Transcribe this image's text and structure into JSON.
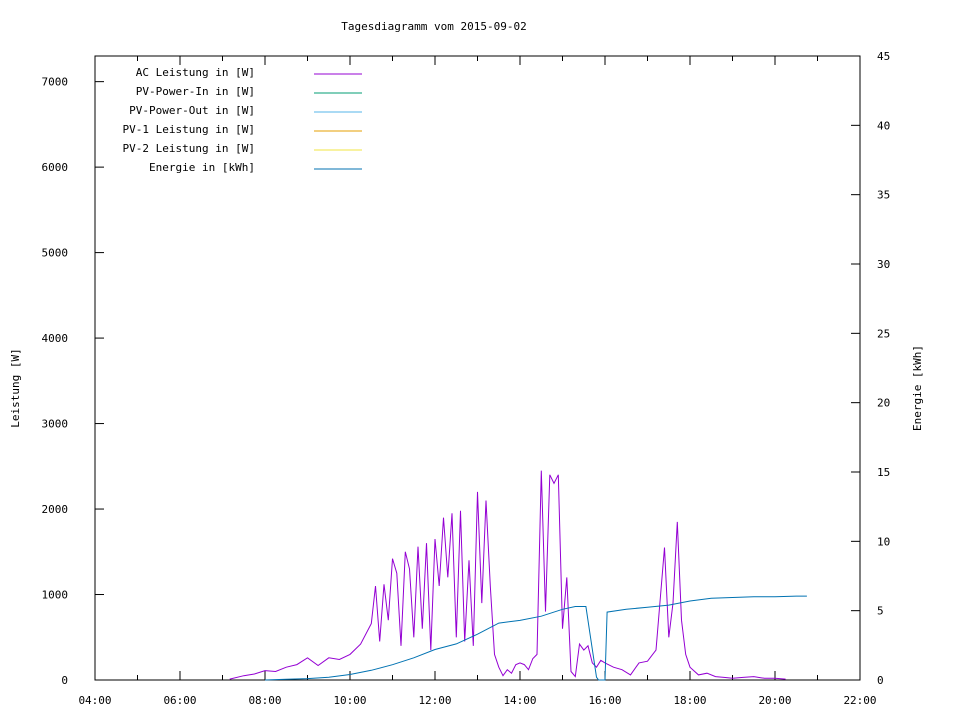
{
  "chart_data": {
    "type": "line",
    "title": "Tagesdiagramm vom 2015-09-02",
    "ylabel": "Leistung [W]",
    "y2label": "Energie [kWh]",
    "x_unit": "hours of day",
    "xlim": [
      4,
      22
    ],
    "ylim": [
      0,
      7300
    ],
    "y2lim": [
      0,
      45
    ],
    "x_ticks": [
      4,
      6,
      8,
      10,
      12,
      14,
      16,
      18,
      20,
      22
    ],
    "x_tick_labels": [
      "04:00",
      "06:00",
      "08:00",
      "10:00",
      "12:00",
      "14:00",
      "16:00",
      "18:00",
      "20:00",
      "22:00"
    ],
    "y_ticks": [
      0,
      1000,
      2000,
      3000,
      4000,
      5000,
      6000,
      7000
    ],
    "y_tick_labels": [
      "0",
      "1000",
      "2000",
      "3000",
      "4000",
      "5000",
      "6000",
      "7000"
    ],
    "y2_ticks": [
      0,
      5,
      10,
      15,
      20,
      25,
      30,
      35,
      40,
      45
    ],
    "y2_tick_labels": [
      "0",
      "5",
      "10",
      "15",
      "20",
      "25",
      "30",
      "35",
      "40",
      "45"
    ],
    "grid": false,
    "legend_position": "top-left",
    "series": [
      {
        "name": "AC Leistung in [W]",
        "axis": "left",
        "color": "#9400d3",
        "x": [
          7.17,
          7.5,
          7.75,
          8.0,
          8.25,
          8.5,
          8.75,
          9.0,
          9.25,
          9.5,
          9.75,
          10.0,
          10.25,
          10.5,
          10.6,
          10.7,
          10.8,
          10.9,
          11.0,
          11.1,
          11.2,
          11.3,
          11.4,
          11.5,
          11.6,
          11.7,
          11.8,
          11.9,
          12.0,
          12.1,
          12.2,
          12.3,
          12.4,
          12.5,
          12.6,
          12.7,
          12.8,
          12.9,
          13.0,
          13.1,
          13.2,
          13.3,
          13.4,
          13.5,
          13.6,
          13.7,
          13.8,
          13.9,
          14.0,
          14.1,
          14.2,
          14.3,
          14.4,
          14.5,
          14.6,
          14.7,
          14.8,
          14.9,
          15.0,
          15.1,
          15.2,
          15.3,
          15.4,
          15.5,
          15.6,
          15.7,
          15.8,
          15.9,
          16.0,
          16.2,
          16.4,
          16.6,
          16.8,
          17.0,
          17.2,
          17.4,
          17.5,
          17.6,
          17.7,
          17.8,
          17.9,
          18.0,
          18.2,
          18.4,
          18.6,
          18.8,
          19.0,
          19.25,
          19.5,
          19.75,
          20.0,
          20.25
        ],
        "y": [
          10,
          50,
          70,
          110,
          100,
          150,
          180,
          260,
          170,
          260,
          240,
          300,
          420,
          660,
          1100,
          450,
          1120,
          700,
          1420,
          1250,
          400,
          1500,
          1300,
          500,
          1560,
          600,
          1600,
          350,
          1650,
          1100,
          1900,
          1200,
          1950,
          500,
          1980,
          450,
          1400,
          400,
          2200,
          900,
          2100,
          1100,
          300,
          150,
          50,
          120,
          80,
          180,
          200,
          180,
          120,
          250,
          300,
          2450,
          800,
          2400,
          2300,
          2400,
          600,
          1200,
          100,
          40,
          420,
          350,
          400,
          200,
          150,
          230,
          200,
          150,
          120,
          60,
          200,
          220,
          350,
          1550,
          500,
          900,
          1850,
          700,
          300,
          150,
          60,
          80,
          40,
          30,
          20,
          30,
          40,
          20,
          20,
          10
        ]
      },
      {
        "name": "PV-Power-In in [W]",
        "axis": "left",
        "color": "#009e73",
        "x": [],
        "y": []
      },
      {
        "name": "PV-Power-Out in [W]",
        "axis": "left",
        "color": "#56b4e9",
        "x": [],
        "y": []
      },
      {
        "name": "PV-1 Leistung in [W]",
        "axis": "left",
        "color": "#e69f00",
        "x": [],
        "y": []
      },
      {
        "name": "PV-2 Leistung in [W]",
        "axis": "left",
        "color": "#f0e442",
        "x": [],
        "y": []
      },
      {
        "name": "Energie in [kWh]",
        "axis": "right",
        "color": "#0072b2",
        "x": [
          8.0,
          8.5,
          9.0,
          9.5,
          10.0,
          10.5,
          11.0,
          11.5,
          12.0,
          12.5,
          13.0,
          13.5,
          14.0,
          14.5,
          15.0,
          15.3,
          15.5,
          15.55,
          15.8,
          15.85,
          16.0,
          16.05,
          16.5,
          17.0,
          17.5,
          18.0,
          18.5,
          19.0,
          19.5,
          20.0,
          20.5,
          20.75
        ],
        "y": [
          0.0,
          0.05,
          0.1,
          0.2,
          0.4,
          0.7,
          1.1,
          1.6,
          2.2,
          2.6,
          3.3,
          4.1,
          4.3,
          4.6,
          5.1,
          5.3,
          5.3,
          5.3,
          0.2,
          0.0,
          0.0,
          4.9,
          5.1,
          5.25,
          5.4,
          5.7,
          5.9,
          5.95,
          6.0,
          6.0,
          6.05,
          6.05
        ]
      }
    ]
  }
}
